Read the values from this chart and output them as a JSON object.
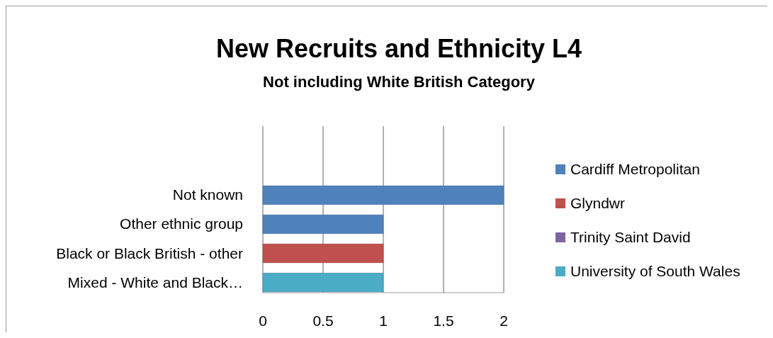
{
  "chart_data": {
    "type": "bar",
    "orientation": "horizontal",
    "title": "New Recruits and Ethnicity L4",
    "subtitle": "Not including White British Category",
    "categories": [
      "Not known",
      "Other ethnic group",
      "Black or Black British - other",
      "Mixed - White and Black…"
    ],
    "series": [
      {
        "name": "Cardiff Metropolitan",
        "color": "#4f81bd",
        "values": [
          2,
          1,
          null,
          null
        ]
      },
      {
        "name": "Glyndwr",
        "color": "#c0504d",
        "values": [
          null,
          null,
          1,
          null
        ]
      },
      {
        "name": "Trinity Saint David",
        "color": "#8064a2",
        "values": [
          null,
          null,
          null,
          null
        ]
      },
      {
        "name": "University of South Wales",
        "color": "#4bacc6",
        "values": [
          null,
          null,
          null,
          1
        ]
      }
    ],
    "xlim": [
      0,
      2
    ],
    "xticks": [
      0,
      0.5,
      1,
      1.5,
      2
    ],
    "grid": "x",
    "legend": "right"
  }
}
